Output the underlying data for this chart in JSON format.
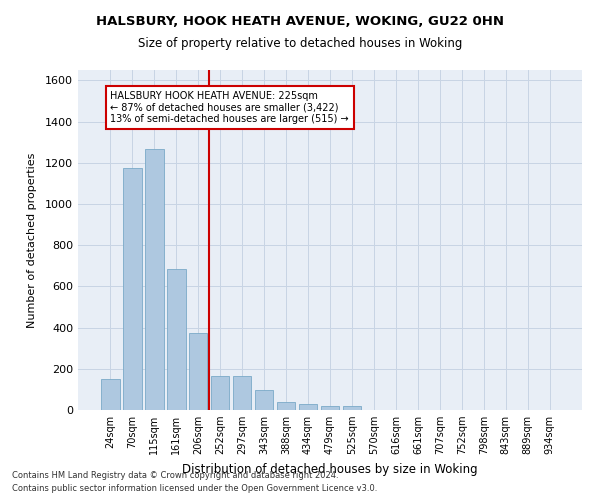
{
  "title1": "HALSBURY, HOOK HEATH AVENUE, WOKING, GU22 0HN",
  "title2": "Size of property relative to detached houses in Woking",
  "xlabel": "Distribution of detached houses by size in Woking",
  "ylabel": "Number of detached properties",
  "categories": [
    "24sqm",
    "70sqm",
    "115sqm",
    "161sqm",
    "206sqm",
    "252sqm",
    "297sqm",
    "343sqm",
    "388sqm",
    "434sqm",
    "479sqm",
    "525sqm",
    "570sqm",
    "616sqm",
    "661sqm",
    "707sqm",
    "752sqm",
    "798sqm",
    "843sqm",
    "889sqm",
    "934sqm"
  ],
  "values": [
    150,
    1175,
    1265,
    685,
    375,
    165,
    165,
    95,
    40,
    30,
    20,
    20,
    0,
    0,
    0,
    0,
    0,
    0,
    0,
    0,
    0
  ],
  "bar_color": "#aec8e0",
  "bar_edge_color": "#7aaac8",
  "vline_color": "#cc0000",
  "annotation_text": "HALSBURY HOOK HEATH AVENUE: 225sqm\n← 87% of detached houses are smaller (3,422)\n13% of semi-detached houses are larger (515) →",
  "annotation_box_color": "#ffffff",
  "annotation_border_color": "#cc0000",
  "ylim": [
    0,
    1650
  ],
  "yticks": [
    0,
    200,
    400,
    600,
    800,
    1000,
    1200,
    1400,
    1600
  ],
  "grid_color": "#c8d4e4",
  "bg_color": "#e8eef6",
  "footnote1": "Contains HM Land Registry data © Crown copyright and database right 2024.",
  "footnote2": "Contains public sector information licensed under the Open Government Licence v3.0."
}
